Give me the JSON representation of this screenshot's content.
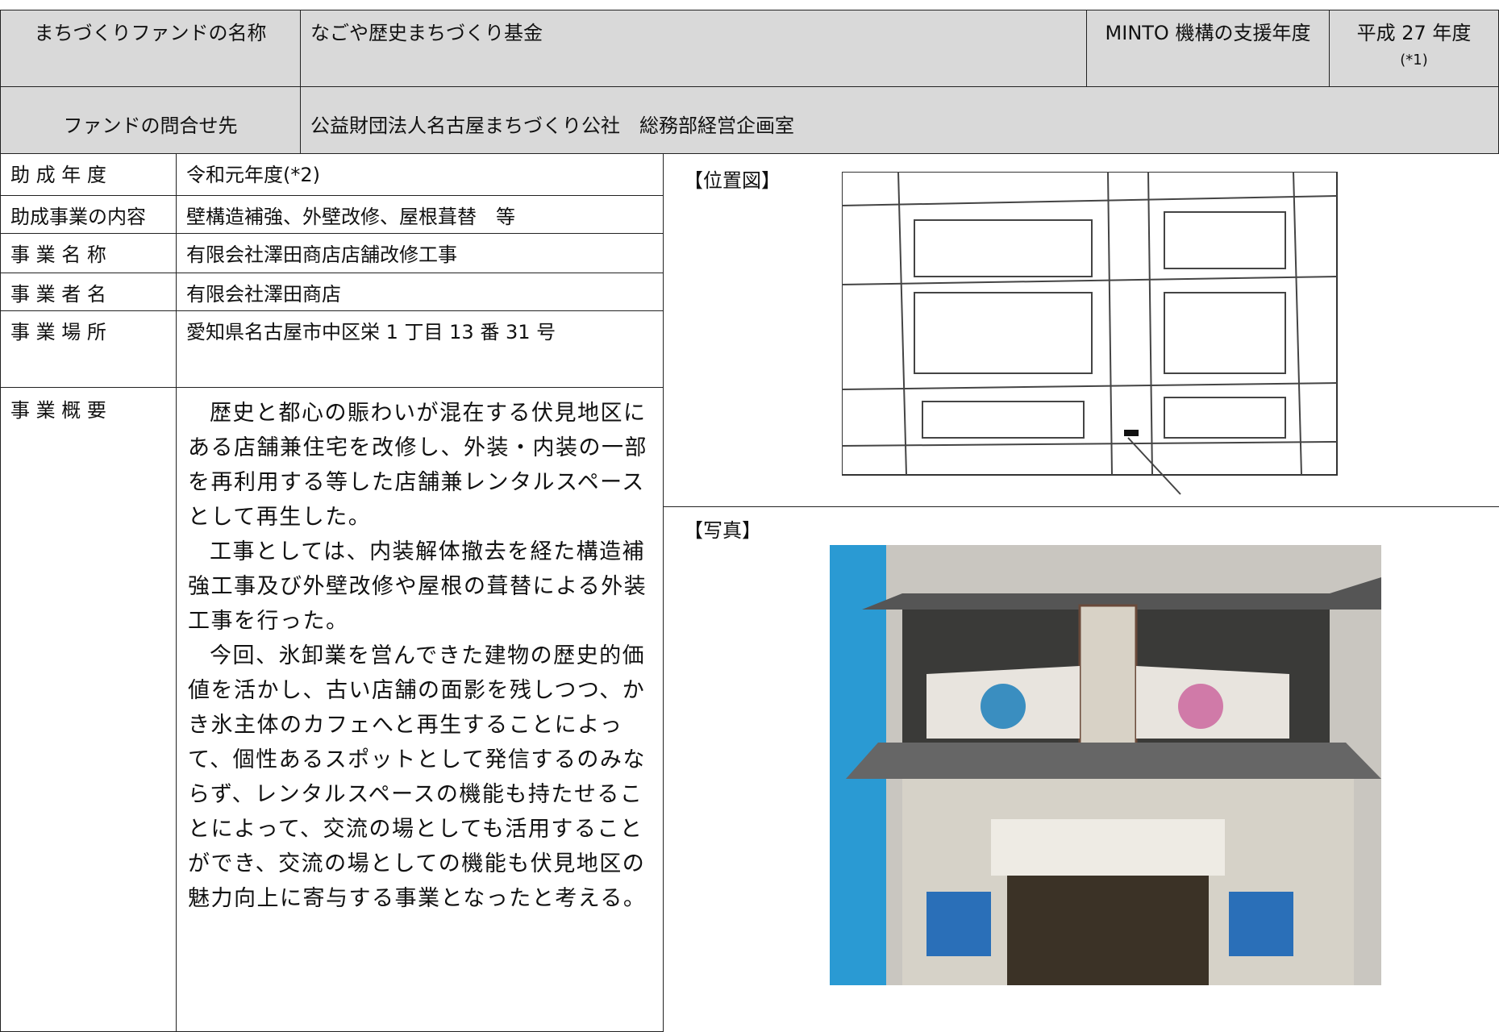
{
  "header": {
    "fund_name_label": "まちづくりファンドの名称",
    "fund_name": "なごや歴史まちづくり基金",
    "support_year_label": "MINTO 機構の支援年度",
    "support_year": "平成 27 年度",
    "support_year_note": "(*1)",
    "contact_label": "ファンドの問合せ先",
    "contact": "公益財団法人名古屋まちづくり公社　総務部経営企画室"
  },
  "table": {
    "rows": [
      [
        "助 成 年 度",
        "令和元年度(*2)"
      ],
      [
        "助成事業の内容",
        "壁構造補強、外壁改修、屋根葺替　等"
      ],
      [
        "事 業 名 称",
        "有限会社澤田商店店舗改修工事"
      ],
      [
        "事 業 者 名",
        "有限会社澤田商店"
      ],
      [
        "事 業 場 所",
        "愛知県名古屋市中区栄 1 丁目 13 番 31 号"
      ]
    ],
    "summary_label": "事 業 概 要",
    "summary": [
      "歴史と都心の賑わいが混在する伏見地区にある店舗兼住宅を改修し、外装・内装の一部を再利用する等した店舗兼レンタルスペースとして再生した。",
      "工事としては、内装解体撤去を経た構造補強工事及び外壁改修や屋根の葺替による外装工事を行った。",
      "今回、氷卸業を営んできた建物の歴史的価値を活かし、古い店舗の面影を残しつつ、かき氷主体のカフェへと再生することによって、個性あるスポットとして発信するのみならず、レンタルスペースの機能も持たせることによって、交流の場としても活用することができ、交流の場としての機能も伏見地区の魅力向上に寄与する事業となったと考える。"
    ]
  },
  "map": {
    "label": "【位置図】"
  },
  "photo": {
    "label": "【写真】"
  }
}
